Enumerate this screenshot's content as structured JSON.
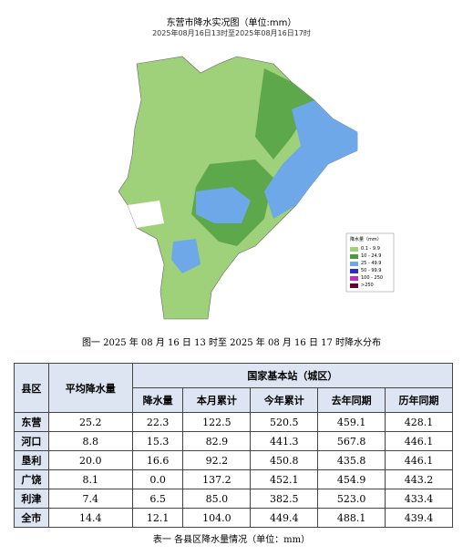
{
  "map": {
    "title": "东营市降水实况图（单位:mm）",
    "subtitle": "2025年08月16日13时至2025年08月16日17时",
    "legend": {
      "title": "降水量（mm）",
      "items": [
        "0.1 - 9.9",
        "10 - 24.9",
        "25 - 49.9",
        "50 - 99.9",
        "100 - 250",
        ">250"
      ]
    }
  },
  "caption": "图一 2025 年 08 月 16 日 13 时至 2025 年 08 月 16 日 17 时降水分布",
  "table": {
    "group_header": "国家基本站（城区）",
    "columns": [
      "县区",
      "平均降水量",
      "降水量",
      "本月累计",
      "今年累计",
      "去年同期",
      "历年同期"
    ],
    "rows": [
      [
        "东营",
        "25.2",
        "22.3",
        "122.5",
        "520.5",
        "459.1",
        "428.1"
      ],
      [
        "河口",
        "8.8",
        "15.3",
        "82.9",
        "441.3",
        "567.8",
        "446.1"
      ],
      [
        "垦利",
        "20.0",
        "16.6",
        "92.2",
        "450.8",
        "435.8",
        "446.1"
      ],
      [
        "广饶",
        "8.1",
        "0.0",
        "137.2",
        "452.1",
        "454.9",
        "443.2"
      ],
      [
        "利津",
        "7.4",
        "6.5",
        "85.0",
        "382.5",
        "523.0",
        "433.4"
      ],
      [
        "全市",
        "14.4",
        "12.1",
        "104.0",
        "449.4",
        "488.1",
        "439.4"
      ]
    ]
  },
  "footer": "表一 各县区降水量情况（单位：mm）"
}
